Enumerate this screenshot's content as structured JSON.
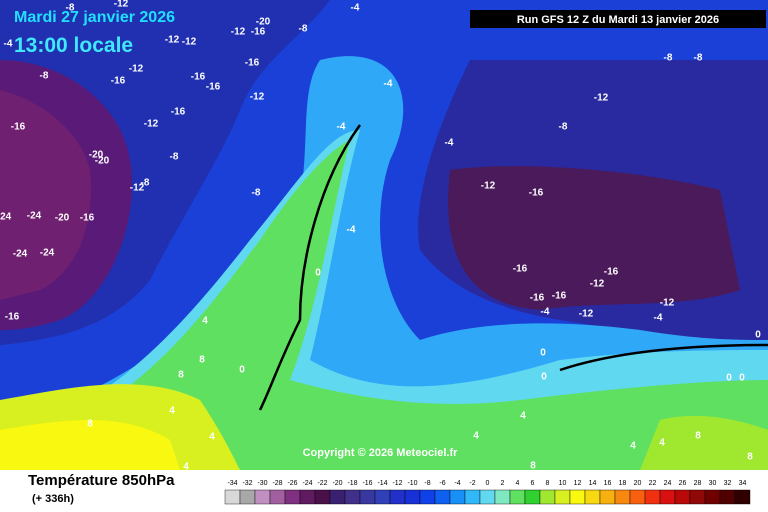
{
  "header": {
    "date": "Mardi 27 janvier 2026",
    "time": "13:00 locale",
    "run": "Run GFS 12 Z du Mardi 13 janvier 2026"
  },
  "copyright": "Copyright © 2026 Meteociel.fr",
  "map": {
    "contour_labels": [
      -8,
      -12,
      -4,
      -20,
      -12,
      -16,
      -8,
      -4,
      -12,
      -12,
      -8,
      -16,
      -12,
      -16,
      -16,
      -16,
      -12,
      -4,
      -8,
      -8,
      -12,
      -16,
      -12,
      -16,
      -8,
      -4,
      -20,
      -20,
      -8,
      -4,
      -12,
      -8,
      -8,
      -12,
      -16,
      -24,
      -24,
      -20,
      -16,
      -4,
      -24,
      -24,
      -16,
      -16,
      -12,
      0,
      -16,
      -16,
      -12,
      -4,
      -12,
      -4,
      -16,
      4,
      0,
      0,
      8,
      0,
      8,
      0,
      0,
      0,
      4,
      8,
      4,
      4,
      4,
      8,
      4,
      4,
      8,
      8,
      4
    ]
  },
  "legend": {
    "title": "Température 850hPa",
    "subtitle": "(+ 336h)",
    "ticks": [
      -34,
      -32,
      -30,
      -28,
      -26,
      -24,
      -22,
      -20,
      -18,
      -16,
      -14,
      -12,
      -10,
      -8,
      -6,
      -4,
      -2,
      0,
      2,
      4,
      6,
      8,
      10,
      12,
      14,
      16,
      18,
      20,
      22,
      24,
      26,
      28,
      30,
      32,
      34
    ],
    "colors": [
      "#d8d8d8",
      "#a8a8a8",
      "#c090c0",
      "#a060a0",
      "#803080",
      "#601a60",
      "#4a104a",
      "#3a2070",
      "#40308a",
      "#3838a0",
      "#3040b8",
      "#2030c8",
      "#1830d8",
      "#1040e8",
      "#1060f0",
      "#1890f8",
      "#30b8f8",
      "#60d8f0",
      "#80e8c0",
      "#60e060",
      "#30d030",
      "#a0e830",
      "#d8f020",
      "#f8f810",
      "#f8d810",
      "#f8b010",
      "#f88810",
      "#f86010",
      "#f03010",
      "#d81010",
      "#b80808",
      "#900808",
      "#700000",
      "#500000",
      "#300000"
    ]
  }
}
